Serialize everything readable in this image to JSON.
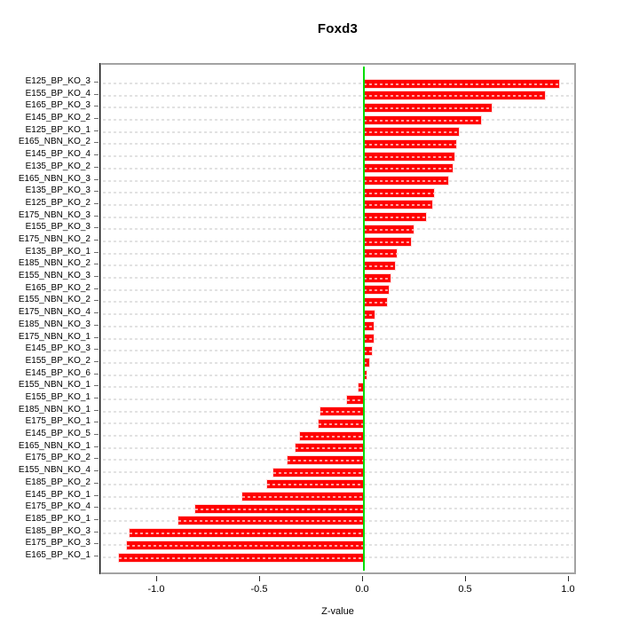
{
  "chart_data": {
    "type": "bar",
    "orientation": "horizontal",
    "title": "Foxd3",
    "xlabel": "Z-value",
    "ylabel": "",
    "categories": [
      "E125_BP_KO_3",
      "E155_BP_KO_4",
      "E165_BP_KO_3",
      "E145_BP_KO_2",
      "E125_BP_KO_1",
      "E165_NBN_KO_2",
      "E145_BP_KO_4",
      "E135_BP_KO_2",
      "E165_NBN_KO_3",
      "E135_BP_KO_3",
      "E125_BP_KO_2",
      "E175_NBN_KO_3",
      "E155_BP_KO_3",
      "E175_NBN_KO_2",
      "E135_BP_KO_1",
      "E185_NBN_KO_2",
      "E155_NBN_KO_3",
      "E165_BP_KO_2",
      "E155_NBN_KO_2",
      "E175_NBN_KO_4",
      "E185_NBN_KO_3",
      "E175_NBN_KO_1",
      "E145_BP_KO_3",
      "E155_BP_KO_2",
      "E145_BP_KO_6",
      "E155_NBN_KO_1",
      "E155_BP_KO_1",
      "E185_NBN_KO_1",
      "E175_BP_KO_1",
      "E145_BP_KO_5",
      "E165_NBN_KO_1",
      "E175_BP_KO_2",
      "E155_NBN_KO_4",
      "E185_BP_KO_2",
      "E145_BP_KO_1",
      "E175_BP_KO_4",
      "E185_BP_KO_1",
      "E185_BP_KO_3",
      "E175_BP_KO_3",
      "E165_BP_KO_1"
    ],
    "values": [
      0.95,
      0.88,
      0.62,
      0.57,
      0.46,
      0.45,
      0.44,
      0.43,
      0.41,
      0.34,
      0.33,
      0.3,
      0.24,
      0.23,
      0.16,
      0.15,
      0.13,
      0.12,
      0.11,
      0.052,
      0.047,
      0.046,
      0.037,
      0.026,
      0.012,
      -0.026,
      -0.08,
      -0.21,
      -0.22,
      -0.31,
      -0.33,
      -0.37,
      -0.44,
      -0.47,
      -0.59,
      -0.82,
      -0.9,
      -1.14,
      -1.15,
      -1.19
    ],
    "x_ticks": [
      {
        "value": -1.0,
        "label": "-1.0"
      },
      {
        "value": -0.5,
        "label": "-0.5"
      },
      {
        "value": 0.0,
        "label": "0.0"
      },
      {
        "value": 0.5,
        "label": "0.5"
      },
      {
        "value": 1.0,
        "label": "1.0"
      }
    ],
    "xlim": [
      -1.276,
      1.039
    ],
    "grid": "dashed-per-category",
    "legend": "none",
    "colors": {
      "bar": "#ff0000",
      "zero_line": "#00dd00",
      "gridline": "#e2e2e2",
      "frame": "#a3a3a3",
      "text": "#000000"
    }
  }
}
